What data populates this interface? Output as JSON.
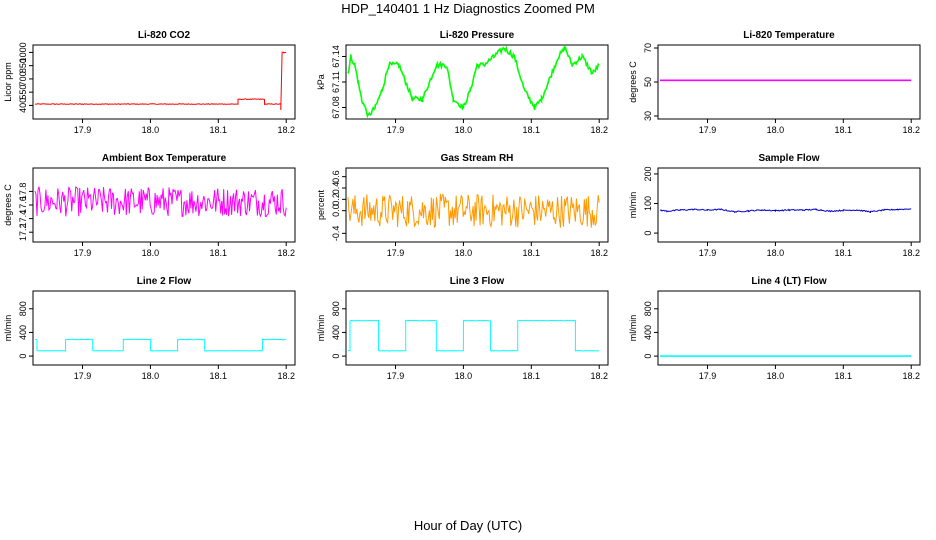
{
  "title": "HDP_140401  1 Hz Diagnostics Zoomed PM",
  "xlabel": "Hour of Day (UTC)",
  "chart_data": [
    {
      "type": "line",
      "title": "Li-820 CO2",
      "ylabel": "Licor ppm",
      "color": "#ff0000",
      "xlim": [
        17.83,
        18.21
      ],
      "ylim": [
        280,
        1050
      ],
      "xticks": [
        "17.9",
        "18.0",
        "18.1",
        "18.2"
      ],
      "xtick_values": [
        17.9,
        18.0,
        18.1,
        18.2
      ],
      "yticks": [
        "400",
        "550",
        "700",
        "850",
        "1000"
      ],
      "ytick_values": [
        400,
        550,
        700,
        850,
        1000
      ],
      "x": [
        17.83,
        18.129,
        18.129,
        18.168,
        18.168,
        18.192,
        18.192,
        18.194,
        18.196,
        18.196,
        18.2
      ],
      "y": [
        415,
        415,
        470,
        470,
        415,
        415,
        350,
        1000,
        1000,
        1000,
        1000
      ],
      "noise": 4
    },
    {
      "type": "line",
      "title": "Li-820 Pressure",
      "ylabel": "kPa",
      "color": "#00ff00",
      "xlim": [
        17.83,
        18.21
      ],
      "ylim": [
        67.07,
        67.15
      ],
      "xticks": [
        "17.9",
        "18.0",
        "18.1",
        "18.2"
      ],
      "xtick_values": [
        17.9,
        18.0,
        18.1,
        18.2
      ],
      "yticks": [
        "67.08",
        "67.11",
        "67.14"
      ],
      "ytick_values": [
        67.08,
        67.11,
        67.14
      ],
      "x": [
        17.83,
        17.834,
        17.84,
        17.845,
        17.85,
        17.86,
        17.87,
        17.88,
        17.89,
        17.905,
        17.925,
        17.94,
        17.95,
        17.96,
        17.975,
        17.985,
        18.0,
        18.01,
        18.02,
        18.03,
        18.045,
        18.06,
        18.075,
        18.09,
        18.105,
        18.115,
        18.125,
        18.14,
        18.15,
        18.16,
        18.175,
        18.19,
        18.2
      ],
      "y": [
        67.12,
        67.14,
        67.13,
        67.11,
        67.09,
        67.07,
        67.08,
        67.1,
        67.13,
        67.13,
        67.09,
        67.09,
        67.11,
        67.13,
        67.13,
        67.09,
        67.08,
        67.1,
        67.13,
        67.13,
        67.14,
        67.15,
        67.14,
        67.1,
        67.08,
        67.09,
        67.11,
        67.14,
        67.15,
        67.13,
        67.14,
        67.12,
        67.13
      ],
      "noise": 0.003
    },
    {
      "type": "line",
      "title": "Li-820 Temperature",
      "ylabel": "degrees C",
      "color": "#ff00ff",
      "xlim": [
        17.83,
        18.21
      ],
      "ylim": [
        30,
        70
      ],
      "xticks": [
        "17.9",
        "18.0",
        "18.1",
        "18.2"
      ],
      "xtick_values": [
        17.9,
        18.0,
        18.1,
        18.2
      ],
      "yticks": [
        "30",
        "50",
        "70"
      ],
      "ytick_values": [
        30,
        50,
        70
      ],
      "x": [
        17.83,
        18.2
      ],
      "y": [
        51,
        51
      ],
      "noise": 0
    },
    {
      "type": "line",
      "title": "Ambient Box Temperature",
      "ylabel": "degrees C",
      "color": "#ff00ff",
      "xlim": [
        17.83,
        18.21
      ],
      "ylim": [
        17.1,
        18.1
      ],
      "xticks": [
        "17.9",
        "18.0",
        "18.1",
        "18.2"
      ],
      "xtick_values": [
        17.9,
        18.0,
        18.1,
        18.2
      ],
      "yticks": [
        "17.2",
        "17.4",
        "17.6",
        "17.8"
      ],
      "ytick_values": [
        17.2,
        17.4,
        17.6,
        17.8
      ],
      "x": [
        17.83,
        18.2
      ],
      "y": [
        17.65,
        17.65
      ],
      "noise": 0.22
    },
    {
      "type": "line",
      "title": "Gas Stream RH",
      "ylabel": "percent",
      "color": "#ff9900",
      "xlim": [
        17.83,
        18.21
      ],
      "ylim": [
        -0.5,
        0.7
      ],
      "xticks": [
        "17.9",
        "18.0",
        "18.1",
        "18.2"
      ],
      "xtick_values": [
        17.9,
        18.0,
        18.1,
        18.2
      ],
      "yticks": [
        "-0.4",
        "0.0",
        "0.2",
        "0.4",
        "0.6"
      ],
      "ytick_values": [
        -0.4,
        0.0,
        0.2,
        0.4,
        0.6
      ],
      "x": [
        17.83,
        18.2
      ],
      "y": [
        0.0,
        0.0
      ],
      "noise": 0.3
    },
    {
      "type": "line",
      "title": "Sample Flow",
      "ylabel": "ml/min",
      "color": "#0000cc",
      "xlim": [
        17.83,
        18.21
      ],
      "ylim": [
        -20,
        210
      ],
      "xticks": [
        "17.9",
        "18.0",
        "18.1",
        "18.2"
      ],
      "xtick_values": [
        17.9,
        18.0,
        18.1,
        18.2
      ],
      "yticks": [
        "0",
        "100",
        "200"
      ],
      "ytick_values": [
        0,
        100,
        200
      ],
      "x": [
        17.83,
        17.84,
        17.86,
        17.88,
        17.9,
        17.92,
        17.94,
        17.96,
        17.98,
        18.0,
        18.02,
        18.04,
        18.06,
        18.08,
        18.1,
        18.12,
        18.14,
        18.16,
        18.18,
        18.2
      ],
      "y": [
        78,
        74,
        78,
        80,
        78,
        80,
        72,
        75,
        78,
        76,
        78,
        78,
        80,
        74,
        77,
        78,
        72,
        78,
        80,
        82
      ],
      "noise": 2
    },
    {
      "type": "line",
      "title": "Line 2 Flow",
      "ylabel": "ml/min",
      "color": "#00ffff",
      "xlim": [
        17.83,
        18.21
      ],
      "ylim": [
        -100,
        1050
      ],
      "xticks": [
        "17.9",
        "18.0",
        "18.1",
        "18.2"
      ],
      "xtick_values": [
        17.9,
        18.0,
        18.1,
        18.2
      ],
      "yticks": [
        "0",
        "400",
        "800"
      ],
      "ytick_values": [
        0,
        400,
        800
      ],
      "x": [
        17.83,
        17.833,
        17.833,
        17.875,
        17.875,
        17.915,
        17.915,
        17.96,
        17.96,
        18.0,
        18.0,
        18.04,
        18.04,
        18.08,
        18.08,
        18.165,
        18.165,
        18.2
      ],
      "y": [
        280,
        280,
        90,
        90,
        280,
        280,
        90,
        90,
        280,
        280,
        90,
        90,
        280,
        280,
        90,
        90,
        280,
        280
      ],
      "noise": 3
    },
    {
      "type": "line",
      "title": "Line 3 Flow",
      "ylabel": "ml/min",
      "color": "#00ffff",
      "xlim": [
        17.83,
        18.21
      ],
      "ylim": [
        -100,
        1050
      ],
      "xticks": [
        "17.9",
        "18.0",
        "18.1",
        "18.2"
      ],
      "xtick_values": [
        17.9,
        18.0,
        18.1,
        18.2
      ],
      "yticks": [
        "0",
        "400",
        "800"
      ],
      "ytick_values": [
        0,
        400,
        800
      ],
      "x": [
        17.83,
        17.833,
        17.833,
        17.875,
        17.875,
        17.915,
        17.915,
        17.96,
        17.96,
        18.0,
        18.0,
        18.04,
        18.04,
        18.08,
        18.08,
        18.165,
        18.165,
        18.2
      ],
      "y": [
        90,
        90,
        600,
        600,
        90,
        90,
        600,
        600,
        90,
        90,
        600,
        600,
        90,
        90,
        600,
        600,
        90,
        90
      ],
      "noise": 4
    },
    {
      "type": "line",
      "title": "Line 4 (LT) Flow",
      "ylabel": "ml/min",
      "color": "#00ffff",
      "xlim": [
        17.83,
        18.21
      ],
      "ylim": [
        -100,
        1050
      ],
      "xticks": [
        "17.9",
        "18.0",
        "18.1",
        "18.2"
      ],
      "xtick_values": [
        17.9,
        18.0,
        18.1,
        18.2
      ],
      "yticks": [
        "0",
        "400",
        "800"
      ],
      "ytick_values": [
        0,
        400,
        800
      ],
      "x": [
        17.83,
        18.2
      ],
      "y": [
        0,
        0
      ],
      "noise": 0
    }
  ]
}
